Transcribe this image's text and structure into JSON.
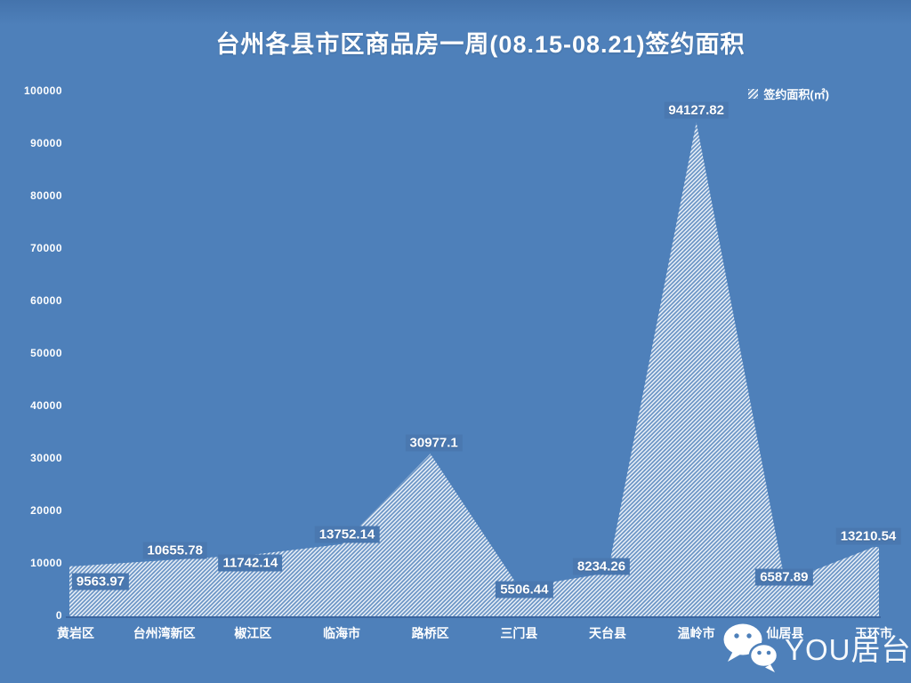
{
  "title": "台州各县市区商品房一周(08.15-08.21)签约面积",
  "legend": {
    "label": "签约面积(㎡)"
  },
  "watermark": {
    "text": "YOU居台州",
    "icon": "wechat-icon"
  },
  "colors": {
    "background": "#4e80ba",
    "background_top": "#4473ac",
    "hatch_line": "#f2f6fb",
    "hatch_base": "rgba(255,255,255,0.16)",
    "axis_line": "#3c66a0",
    "label_box": "#4a78b0",
    "text": "#ffffff"
  },
  "chart_data": {
    "type": "area",
    "title": "台州各县市区商品房一周(08.15-08.21)签约面积",
    "series_name": "签约面积(㎡)",
    "categories": [
      "黄岩区",
      "台州湾新区",
      "椒江区",
      "临海市",
      "路桥区",
      "三门县",
      "天台县",
      "温岭市",
      "仙居县",
      "玉环市"
    ],
    "values": [
      9563.97,
      10655.78,
      11742.14,
      13752.14,
      30977.1,
      5506.44,
      8234.26,
      94127.82,
      6587.89,
      13210.54
    ],
    "data_labels": [
      "9563.97",
      "10655.78",
      "11742.14",
      "13752.14",
      "30977.1",
      "5506.44",
      "8234.26",
      "94127.82",
      "6587.89",
      "13210.54"
    ],
    "ylim": [
      0,
      100000
    ],
    "ytick_step": 10000,
    "yticks": [
      "0",
      "10000",
      "20000",
      "30000",
      "40000",
      "50000",
      "60000",
      "70000",
      "80000",
      "90000",
      "100000"
    ],
    "fill_style": "diagonal-hatch",
    "legend_position": "top-right",
    "grid": false
  }
}
